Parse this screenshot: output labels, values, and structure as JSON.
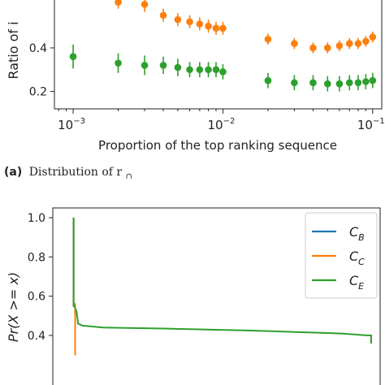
{
  "figure": {
    "caption_a_prefix": "(a)",
    "caption_a_text": "Distribution of r",
    "caption_a_sub": "∩"
  },
  "chart_data": [
    {
      "type": "scatter",
      "panel": "a",
      "xlabel": "Proportion of the top ranking sequence",
      "ylabel": "Ratio of i",
      "xscale": "log",
      "xlim": [
        0.00075,
        0.115
      ],
      "ylim": [
        0.12,
        0.62
      ],
      "yticks": [
        0.2,
        0.4
      ],
      "ytick_labels": [
        "0.2",
        "0.4"
      ],
      "xticks": [
        0.001,
        0.01,
        0.1
      ],
      "xtick_labels": [
        {
          "base": "10",
          "exp": "−3"
        },
        {
          "base": "10",
          "exp": "−2"
        },
        {
          "base": "10",
          "exp": "−1"
        }
      ],
      "x": [
        0.001,
        0.002,
        0.003,
        0.004,
        0.005,
        0.006,
        0.007,
        0.008,
        0.009,
        0.01,
        0.02,
        0.03,
        0.04,
        0.05,
        0.06,
        0.07,
        0.08,
        0.09,
        0.1
      ],
      "series": [
        {
          "color": "#ff7f0e",
          "values": [
            null,
            0.61,
            0.6,
            0.55,
            0.53,
            0.52,
            0.51,
            0.5,
            0.49,
            0.49,
            0.44,
            0.42,
            0.4,
            0.4,
            0.41,
            0.42,
            0.42,
            0.43,
            0.45
          ],
          "err": [
            null,
            0.03,
            0.035,
            0.03,
            0.03,
            0.03,
            0.03,
            0.03,
            0.03,
            0.03,
            0.025,
            0.025,
            0.025,
            0.025,
            0.025,
            0.025,
            0.025,
            0.025,
            0.025
          ]
        },
        {
          "color": "#2ca02c",
          "values": [
            0.36,
            0.33,
            0.32,
            0.32,
            0.31,
            0.3,
            0.3,
            0.3,
            0.3,
            0.29,
            0.25,
            0.24,
            0.24,
            0.235,
            0.235,
            0.24,
            0.24,
            0.245,
            0.25
          ],
          "err": [
            0.055,
            0.045,
            0.045,
            0.04,
            0.04,
            0.035,
            0.035,
            0.035,
            0.035,
            0.035,
            0.035,
            0.035,
            0.035,
            0.035,
            0.035,
            0.035,
            0.035,
            0.035,
            0.035
          ]
        }
      ]
    },
    {
      "type": "line",
      "panel": "b",
      "xlabel": "",
      "ylabel": "Pr(X >= x)",
      "ylim": [
        0.36,
        1.05
      ],
      "yticks": [
        0.4,
        0.6,
        0.8,
        1.0
      ],
      "ytick_labels": [
        "0.4",
        "0.6",
        "0.8",
        "1.0"
      ],
      "legend_position": "top-right",
      "series": [
        {
          "name": "C_B",
          "label_main": "C",
          "label_sub": "B",
          "color": "#1f77b4",
          "x": [
            0,
            0,
            0.005,
            0.005
          ],
          "y": [
            1.0,
            0.55,
            0.55,
            0.3
          ]
        },
        {
          "name": "C_C",
          "label_main": "C",
          "label_sub": "C",
          "color": "#ff7f0e",
          "x": [
            0,
            0,
            0.005,
            0.005
          ],
          "y": [
            1.0,
            0.56,
            0.56,
            0.3
          ]
        },
        {
          "name": "C_E",
          "label_main": "C",
          "label_sub": "E",
          "color": "#2ca02c",
          "x": [
            0,
            0,
            0.01,
            0.015,
            0.03,
            0.1,
            0.3,
            0.6,
            0.9,
            0.99,
            1.0,
            1.0
          ],
          "y": [
            1.0,
            0.56,
            0.52,
            0.46,
            0.45,
            0.44,
            0.435,
            0.425,
            0.41,
            0.4,
            0.4,
            0.36
          ]
        }
      ]
    }
  ]
}
